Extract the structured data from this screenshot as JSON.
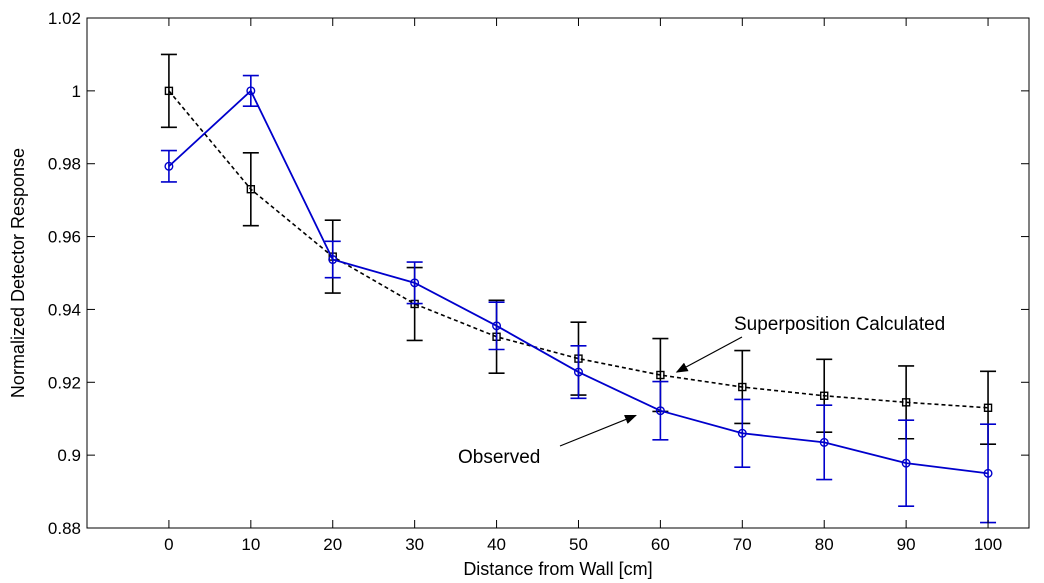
{
  "chart_data": {
    "type": "line",
    "title": "",
    "xlabel": "Distance from Wall [cm]",
    "ylabel": "Normalized Detector Response",
    "xlim": [
      -10,
      105
    ],
    "ylim": [
      0.88,
      1.02
    ],
    "x": [
      0,
      10,
      20,
      30,
      40,
      50,
      60,
      70,
      80,
      90,
      100
    ],
    "xticks": [
      "0",
      "10",
      "20",
      "30",
      "40",
      "50",
      "60",
      "70",
      "80",
      "90",
      "100"
    ],
    "yticks": [
      "0.88",
      "0.9",
      "0.92",
      "0.94",
      "0.96",
      "0.98",
      "1",
      "1.02"
    ],
    "grid": false,
    "legend": "none",
    "series": [
      {
        "name": "Superposition Calculated",
        "color": "#000000",
        "line_style": "dashed",
        "marker": "square",
        "values": [
          1.0,
          0.973,
          0.9545,
          0.9415,
          0.9325,
          0.9265,
          0.922,
          0.9187,
          0.9163,
          0.9145,
          0.913
        ],
        "errors": [
          0.01,
          0.01,
          0.01,
          0.01,
          0.01,
          0.01,
          0.01,
          0.01,
          0.01,
          0.01,
          0.01
        ]
      },
      {
        "name": "Observed",
        "color": "#0000cc",
        "line_style": "solid",
        "marker": "circle",
        "values": [
          0.9793,
          1.0,
          0.9537,
          0.9473,
          0.9355,
          0.9228,
          0.9122,
          0.906,
          0.9035,
          0.8978,
          0.895
        ],
        "errors": [
          0.0043,
          0.0042,
          0.005,
          0.0057,
          0.0065,
          0.0072,
          0.008,
          0.0093,
          0.0102,
          0.0118,
          0.0135
        ]
      }
    ],
    "annotations": [
      {
        "text": "Superposition Calculated",
        "series": "Superposition Calculated",
        "x": 62,
        "y": 0.922
      },
      {
        "text": "Observed",
        "series": "Observed",
        "x": 57,
        "y": 0.912
      }
    ]
  }
}
